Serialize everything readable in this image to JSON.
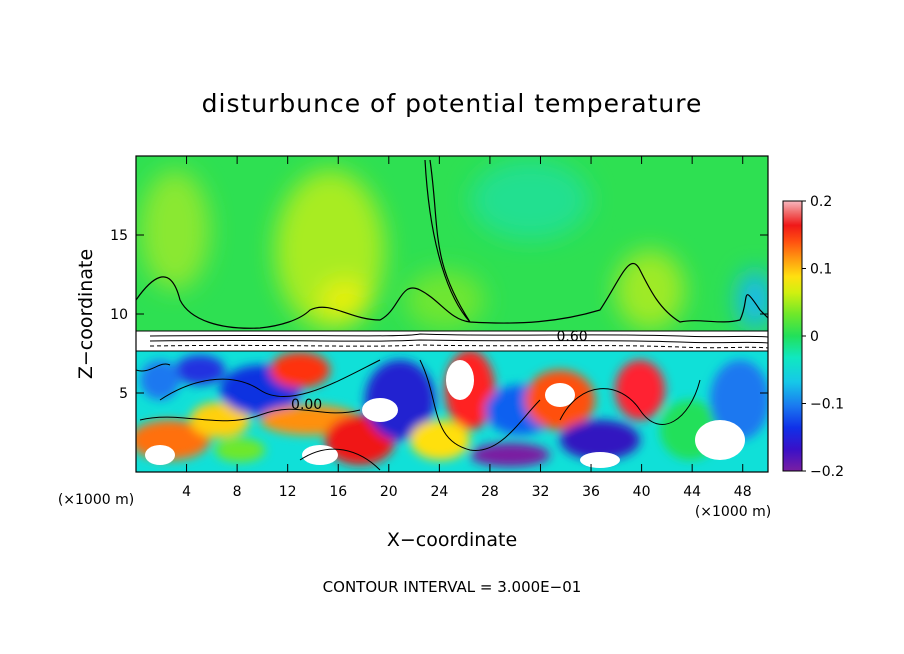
{
  "chart_data": {
    "type": "heatmap",
    "title": "disturbunce of potential temperature",
    "xlabel": "X−coordinate",
    "ylabel": "Z−coordinate",
    "x_unit_left": "(×1000 m)",
    "x_unit_right": "(×1000 m)",
    "xlim": [
      0,
      50
    ],
    "ylim": [
      0,
      20
    ],
    "x_ticks": [
      4,
      8,
      12,
      16,
      20,
      24,
      28,
      32,
      36,
      40,
      44,
      48
    ],
    "y_ticks": [
      5,
      10,
      15
    ],
    "colorbar": {
      "range": [
        -0.2,
        0.2
      ],
      "ticks": [
        {
          "value": 0.2,
          "label": "0.2"
        },
        {
          "value": 0.1,
          "label": "0.1"
        },
        {
          "value": 0,
          "label": "0"
        },
        {
          "value": -0.1,
          "label": "−0.1"
        },
        {
          "value": -0.2,
          "label": "−0.2"
        }
      ]
    },
    "contour_labels": [
      {
        "x": 13.5,
        "z": 4.3,
        "label": "0.00"
      },
      {
        "x": 34.5,
        "z": 8.6,
        "label": "0.60"
      }
    ],
    "footer": "CONTOUR INTERVAL = 3.000E−01"
  }
}
